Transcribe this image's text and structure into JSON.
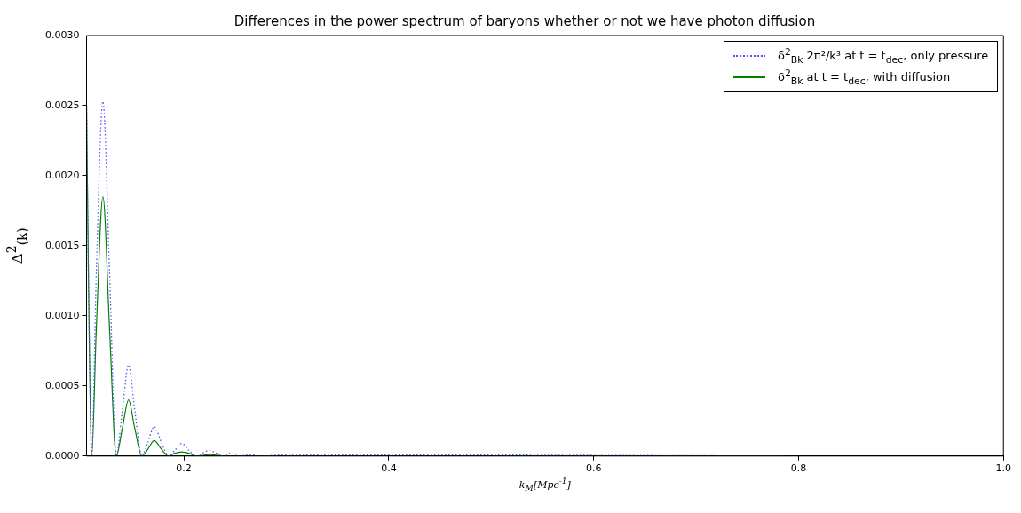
{
  "chart_data": {
    "type": "line",
    "title": "Differences in the power spectrum of baryons whether or not we have photon diffusion",
    "xlabel": "k$_{M}$[Mpc$^{-1}$]",
    "ylabel": "Δ$^{2}$$_{(k)}$",
    "xlim": [
      0.105,
      1.0
    ],
    "ylim": [
      0,
      0.003
    ],
    "xticks": [
      0.2,
      0.4,
      0.6,
      0.8,
      {
        "value": 1.0,
        "label": "1.0"
      }
    ],
    "yticks": [
      {
        "value": 0,
        "label": "0.0000"
      },
      {
        "value": 0.0005,
        "label": "0.0005"
      },
      {
        "value": 0.001,
        "label": "0.0010"
      },
      {
        "value": 0.0015,
        "label": "0.0015"
      },
      {
        "value": 0.002,
        "label": "0.0020"
      },
      {
        "value": 0.0025,
        "label": "0.0025"
      },
      {
        "value": 0.003,
        "label": "0.0030"
      }
    ],
    "grid": false,
    "legend": "top right",
    "marker": "none",
    "series": [
      {
        "name": "δ$^{2}$$_{Bk}$ 2π²/k³ at t = t$_{dec}$, only pressure",
        "color": "#5050ff",
        "line_style": "dotted",
        "x": [
          0.105,
          0.107,
          0.11,
          0.1145,
          0.121,
          0.1275,
          0.134,
          0.14,
          0.146,
          0.152,
          0.159,
          0.165,
          0.171,
          0.178,
          0.185,
          0.191,
          0.198,
          0.205,
          0.212,
          0.218,
          0.225,
          0.232,
          0.239,
          0.246,
          0.253,
          0.265,
          0.275,
          0.3,
          0.795
        ],
        "values": [
          0.0025,
          0.0012,
          0,
          0.0013,
          0.00253,
          0.0013,
          0,
          0.00033,
          0.00065,
          0.00033,
          0,
          0.0001,
          0.00021,
          0.0001,
          0,
          4e-05,
          9e-05,
          4e-05,
          0,
          2e-05,
          4e-05,
          2e-05,
          0,
          2e-05,
          0,
          1e-05,
          0,
          1e-05,
          0
        ]
      },
      {
        "name": "δ$^{2}$$_{Bk}$ at t = t$_{dec}$, with diffusion",
        "color": "#008000",
        "line_style": "solid",
        "x": [
          0.105,
          0.107,
          0.11,
          0.1145,
          0.121,
          0.1275,
          0.134,
          0.14,
          0.146,
          0.152,
          0.159,
          0.165,
          0.171,
          0.178,
          0.185,
          0.191,
          0.198,
          0.205,
          0.212,
          0.225,
          0.24,
          0.785
        ],
        "values": [
          0.0025,
          0.0012,
          0,
          0.0009,
          0.00185,
          0.0009,
          0,
          0.0002,
          0.0004,
          0.0002,
          0,
          5e-05,
          0.00011,
          5e-05,
          0,
          2e-05,
          3e-05,
          2e-05,
          0,
          1e-05,
          0,
          0
        ]
      }
    ]
  }
}
